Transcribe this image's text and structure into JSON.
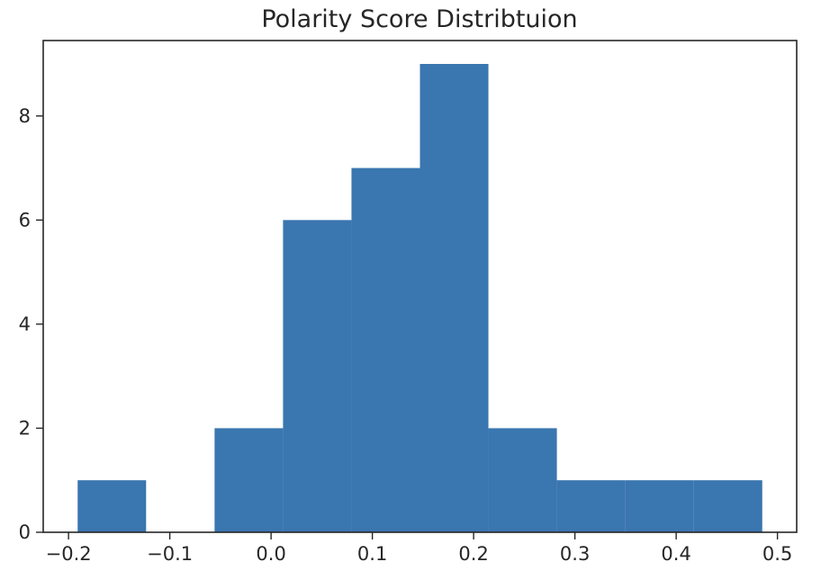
{
  "chart_data": {
    "type": "bar",
    "title": "Polarity Score Distribtuion",
    "xlabel": "",
    "ylabel": "",
    "bin_edges": [
      -0.191,
      -0.1234,
      -0.0558,
      0.0118,
      0.0794,
      0.147,
      0.2146,
      0.2822,
      0.3498,
      0.4174,
      0.485
    ],
    "values": [
      1,
      0,
      2,
      6,
      7,
      9,
      2,
      1,
      1,
      1
    ],
    "xlim": [
      -0.225,
      0.519
    ],
    "ylim": [
      0,
      9.45
    ],
    "x_ticks": [
      -0.2,
      -0.1,
      0.0,
      0.1,
      0.2,
      0.3,
      0.4,
      0.5
    ],
    "x_tick_labels": [
      "−0.2",
      "−0.1",
      "0.0",
      "0.1",
      "0.2",
      "0.3",
      "0.4",
      "0.5"
    ],
    "y_ticks": [
      0,
      2,
      4,
      6,
      8
    ],
    "y_tick_labels": [
      "0",
      "2",
      "4",
      "6",
      "8"
    ],
    "bar_color": "#3a76af",
    "grid": false,
    "legend": "none"
  }
}
